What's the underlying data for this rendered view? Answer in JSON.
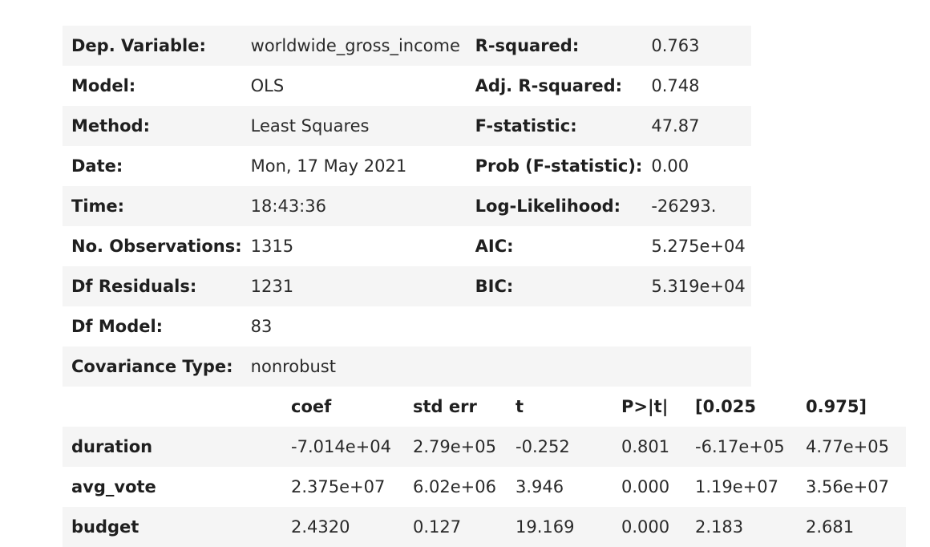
{
  "summary": [
    [
      "Dep. Variable:",
      "worldwide_gross_income",
      "R-squared:",
      "0.763"
    ],
    [
      "Model:",
      "OLS",
      "Adj. R-squared:",
      "0.748"
    ],
    [
      "Method:",
      "Least Squares",
      "F-statistic:",
      "47.87"
    ],
    [
      "Date:",
      "Mon, 17 May 2021",
      "Prob (F-statistic):",
      "0.00"
    ],
    [
      "Time:",
      "18:43:36",
      "Log-Likelihood:",
      "-26293."
    ],
    [
      "No. Observations:",
      "1315",
      "AIC:",
      "5.275e+04"
    ],
    [
      "Df Residuals:",
      "1231",
      "BIC:",
      "5.319e+04"
    ],
    [
      "Df Model:",
      "83",
      "",
      ""
    ],
    [
      "Covariance Type:",
      "nonrobust",
      "",
      ""
    ]
  ],
  "coef_table": {
    "headers": [
      "",
      "coef",
      "std err",
      "t",
      "P>|t|",
      "[0.025",
      "0.975]"
    ],
    "rows": [
      [
        "duration",
        "-7.014e+04",
        "2.79e+05",
        "-0.252",
        "0.801",
        "-6.17e+05",
        "4.77e+05"
      ],
      [
        "avg_vote",
        "2.375e+07",
        "6.02e+06",
        "3.946",
        "0.000",
        "1.19e+07",
        "3.56e+07"
      ],
      [
        "budget",
        "2.4320",
        "0.127",
        "19.169",
        "0.000",
        "2.183",
        "2.681"
      ]
    ]
  }
}
